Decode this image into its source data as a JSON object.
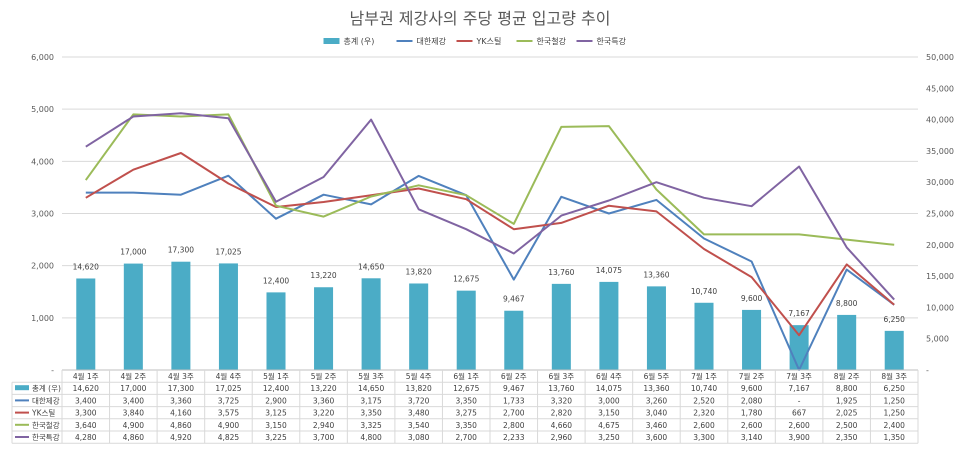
{
  "chart_data": {
    "type": "bar+line",
    "title": "남부권 제강사의 주당 평균 입고량 추이",
    "categories": [
      "4월 1주",
      "4월 2주",
      "4월 3주",
      "4월 4주",
      "5월 1주",
      "5월 2주",
      "5월 3주",
      "5월 4주",
      "6월 1주",
      "6월 2주",
      "6월 3주",
      "6월 4주",
      "6월 5주",
      "7월 1주",
      "7월 2주",
      "7월 3주",
      "8월 2주",
      "8월 3주"
    ],
    "left_axis": {
      "min": 0,
      "max": 6000,
      "step": 1000,
      "ticks": [
        "-",
        "1,000",
        "2,000",
        "3,000",
        "4,000",
        "5,000",
        "6,000"
      ]
    },
    "right_axis": {
      "min": 0,
      "max": 50000,
      "step": 5000,
      "ticks": [
        "-",
        "5,000",
        "10,000",
        "15,000",
        "20,000",
        "25,000",
        "30,000",
        "35,000",
        "40,000",
        "45,000",
        "50,000"
      ]
    },
    "series": [
      {
        "name": "총계 (우)",
        "kind": "bar",
        "axis": "right",
        "color": "#4bacc6",
        "values": [
          14620,
          17000,
          17300,
          17025,
          12400,
          13220,
          14650,
          13820,
          12675,
          9467,
          13760,
          14075,
          13360,
          10740,
          9600,
          7167,
          8800,
          6250
        ],
        "display": [
          "14,620",
          "17,000",
          "17,300",
          "17,025",
          "12,400",
          "13,220",
          "14,650",
          "13,820",
          "12,675",
          "9,467",
          "13,760",
          "14,075",
          "13,360",
          "10,740",
          "9,600",
          "7,167",
          "8,800",
          "6,250"
        ]
      },
      {
        "name": "대한제강",
        "kind": "line",
        "axis": "left",
        "color": "#4f81bd",
        "values": [
          3400,
          3400,
          3360,
          3725,
          2900,
          3360,
          3175,
          3720,
          3350,
          1733,
          3320,
          3000,
          3260,
          2520,
          2080,
          0,
          1925,
          1250
        ],
        "display": [
          "3,400",
          "3,400",
          "3,360",
          "3,725",
          "2,900",
          "3,360",
          "3,175",
          "3,720",
          "3,350",
          "1,733",
          "3,320",
          "3,000",
          "3,260",
          "2,520",
          "2,080",
          "-",
          "1,925",
          "1,250"
        ]
      },
      {
        "name": "YK스틸",
        "kind": "line",
        "axis": "left",
        "color": "#c0504d",
        "values": [
          3300,
          3840,
          4160,
          3575,
          3125,
          3220,
          3350,
          3480,
          3275,
          2700,
          2820,
          3150,
          3040,
          2320,
          1780,
          667,
          2025,
          1250
        ],
        "display": [
          "3,300",
          "3,840",
          "4,160",
          "3,575",
          "3,125",
          "3,220",
          "3,350",
          "3,480",
          "3,275",
          "2,700",
          "2,820",
          "3,150",
          "3,040",
          "2,320",
          "1,780",
          "667",
          "2,025",
          "1,250"
        ]
      },
      {
        "name": "한국철강",
        "kind": "line",
        "axis": "left",
        "color": "#9bbb59",
        "values": [
          3640,
          4900,
          4860,
          4900,
          3150,
          2940,
          3325,
          3540,
          3350,
          2800,
          4660,
          4675,
          3460,
          2600,
          2600,
          2600,
          2500,
          2400
        ],
        "display": [
          "3,640",
          "4,900",
          "4,860",
          "4,900",
          "3,150",
          "2,940",
          "3,325",
          "3,540",
          "3,350",
          "2,800",
          "4,660",
          "4,675",
          "3,460",
          "2,600",
          "2,600",
          "2,600",
          "2,500",
          "2,400"
        ]
      },
      {
        "name": "한국특강",
        "kind": "line",
        "axis": "left",
        "color": "#8064a2",
        "values": [
          4280,
          4860,
          4920,
          4825,
          3225,
          3700,
          4800,
          3080,
          2700,
          2233,
          2960,
          3250,
          3600,
          3300,
          3140,
          3900,
          2350,
          1350
        ],
        "display": [
          "4,280",
          "4,860",
          "4,920",
          "4,825",
          "3,225",
          "3,700",
          "4,800",
          "3,080",
          "2,700",
          "2,233",
          "2,960",
          "3,250",
          "3,600",
          "3,300",
          "3,140",
          "3,900",
          "2,350",
          "1,350"
        ]
      }
    ],
    "legend_position": "top",
    "data_table": true,
    "grid": true
  }
}
